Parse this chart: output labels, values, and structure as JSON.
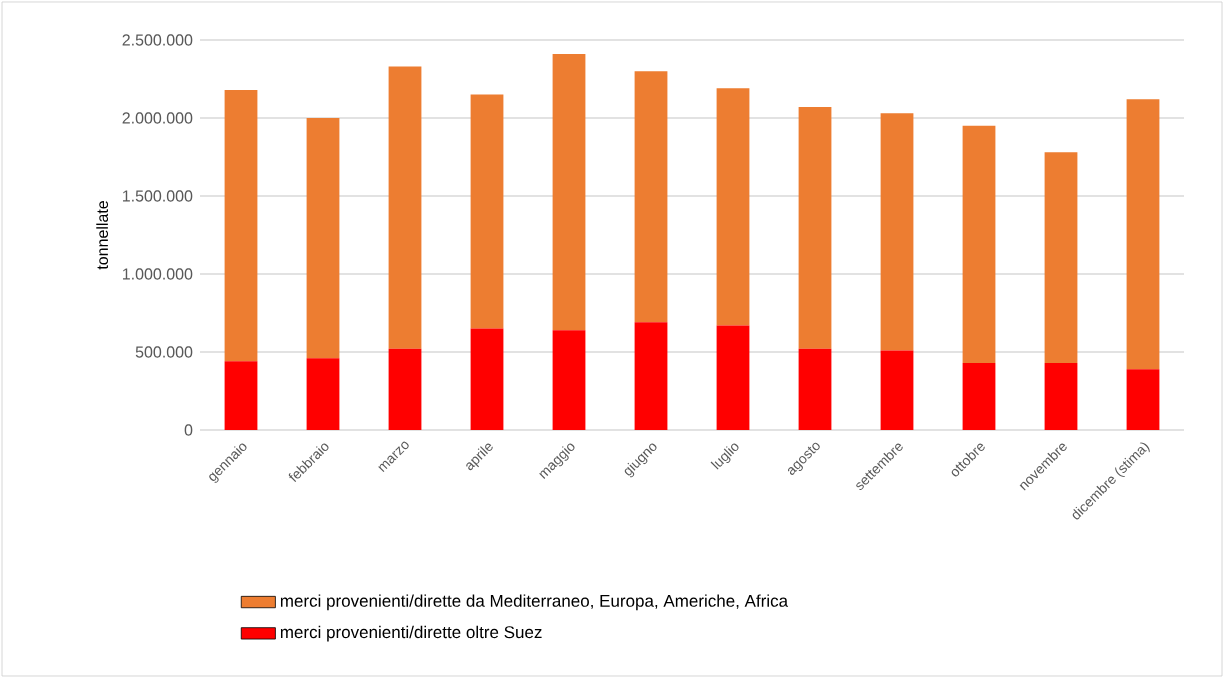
{
  "chart_data": {
    "type": "bar",
    "stacked": true,
    "ylabel": "tonnellate",
    "categories": [
      "gennaio",
      "febbraio",
      "marzo",
      "aprile",
      "maggio",
      "giugno",
      "luglio",
      "agosto",
      "settembre",
      "ottobre",
      "novembre",
      "dicembre (stima)"
    ],
    "series": [
      {
        "name": "merci provenienti/dirette oltre Suez",
        "color": "#ff0000",
        "values": [
          440000,
          460000,
          520000,
          650000,
          640000,
          690000,
          670000,
          520000,
          510000,
          430000,
          430000,
          390000
        ]
      },
      {
        "name": "merci provenienti/dirette da Mediterraneo, Europa, Americhe, Africa",
        "color": "#ed7d31",
        "values": [
          1740000,
          1540000,
          1810000,
          1500000,
          1770000,
          1610000,
          1520000,
          1550000,
          1520000,
          1520000,
          1350000,
          1730000
        ]
      }
    ],
    "ylim": [
      0,
      2500000
    ],
    "yticks": [
      0,
      {
        "value": 500000,
        "label": "500.000"
      },
      {
        "value": 1000000,
        "label": "1.000.000"
      },
      {
        "value": 1500000,
        "label": "1.500.000"
      },
      {
        "value": 2000000,
        "label": "2.000.000"
      },
      {
        "value": 2500000,
        "label": "2.500.000"
      }
    ],
    "grid": "y",
    "legend": "bottom"
  }
}
